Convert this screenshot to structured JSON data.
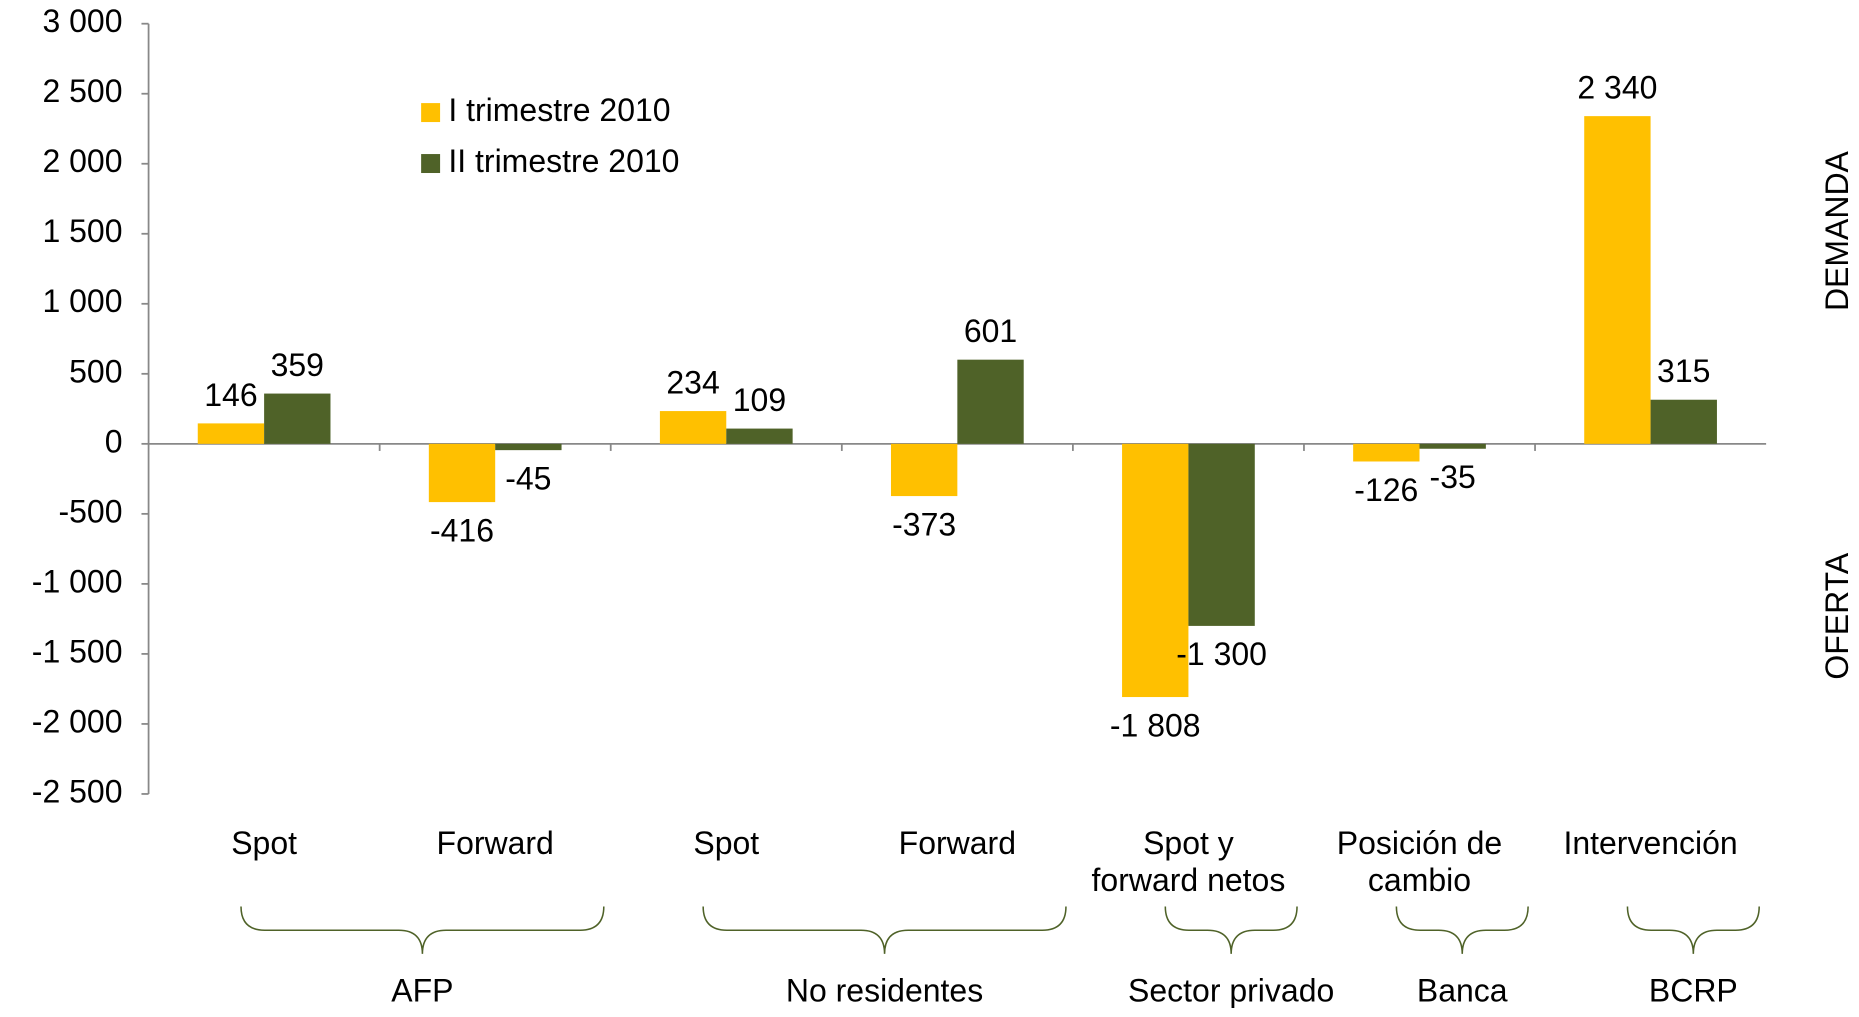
{
  "chart_data": {
    "type": "bar",
    "groups": [
      {
        "name": "AFP",
        "categories": [
          "Spot",
          "Forward"
        ]
      },
      {
        "name": "No residentes",
        "categories": [
          "Spot",
          "Forward"
        ]
      },
      {
        "name": "Sector privado",
        "categories": [
          "Spot y\nforward netos"
        ]
      },
      {
        "name": "Banca",
        "categories": [
          "Posición de\ncambio"
        ]
      },
      {
        "name": "BCRP",
        "categories": [
          "Intervención"
        ]
      }
    ],
    "series": [
      {
        "name": "I trimestre 2010",
        "color": "#ffc000",
        "values": [
          146,
          -416,
          234,
          -373,
          -1808,
          -126,
          2340
        ],
        "value_labels": [
          "146",
          "-416",
          "234",
          "-373",
          "-1 808",
          "-126",
          "2 340"
        ]
      },
      {
        "name": "II trimestre 2010",
        "color": "#4f6228",
        "values": [
          359,
          -45,
          109,
          601,
          -1300,
          -35,
          315
        ],
        "value_labels": [
          "359",
          "-45",
          "109",
          "601",
          "-1 300",
          "-35",
          "315"
        ]
      }
    ],
    "ylim": [
      -2500,
      3000
    ],
    "yticks": [
      {
        "value": -2500,
        "label": "-2 500"
      },
      {
        "value": -2000,
        "label": "-2 000"
      },
      {
        "value": -1500,
        "label": "-1 500"
      },
      {
        "value": -1000,
        "label": "-1 000"
      },
      -500,
      0,
      500,
      {
        "value": 1000,
        "label": "1 000"
      },
      {
        "value": 1500,
        "label": "1 500"
      },
      {
        "value": 2000,
        "label": "2 000"
      },
      {
        "value": 2500,
        "label": "2 500"
      },
      {
        "value": 3000,
        "label": "3 000"
      }
    ],
    "annotations": [
      "DEMANDA",
      "OFERTA"
    ],
    "legend": "upper left"
  }
}
